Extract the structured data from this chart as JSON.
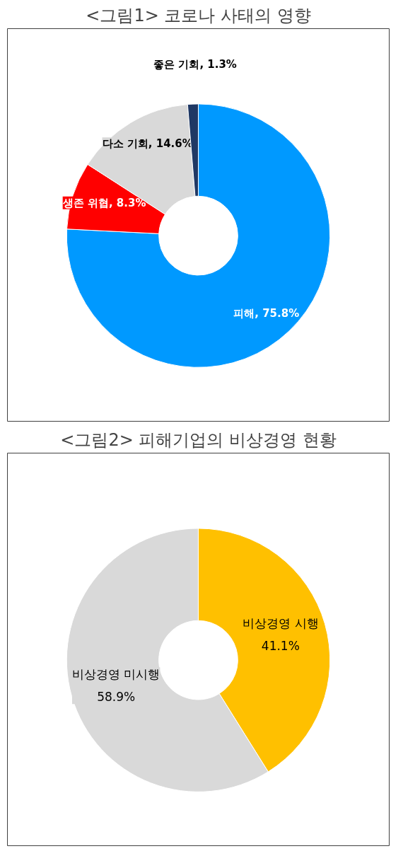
{
  "chart_data": [
    {
      "type": "donut",
      "title": "<그림1> 코로나 사태의 영향",
      "categories": [
        "피해",
        "생존 위협",
        "다소 기회",
        "좋은 기회"
      ],
      "values": [
        75.8,
        8.3,
        14.6,
        1.3
      ],
      "colors": [
        "#0099ff",
        "#ff0000",
        "#d9d9d9",
        "#1f3864"
      ],
      "value_labels": [
        "75.8%",
        "8.3%",
        "14.6%",
        "1.3%"
      ],
      "legend": false
    },
    {
      "type": "donut",
      "title": "<그림2> 피해기업의 비상경영 현황",
      "categories": [
        "비상경영 시행",
        "비상경영 미시행"
      ],
      "values": [
        41.1,
        58.9
      ],
      "colors": [
        "#ffc000",
        "#d9d9d9"
      ],
      "value_labels": [
        "41.1%",
        "58.9%"
      ],
      "legend": false
    }
  ]
}
